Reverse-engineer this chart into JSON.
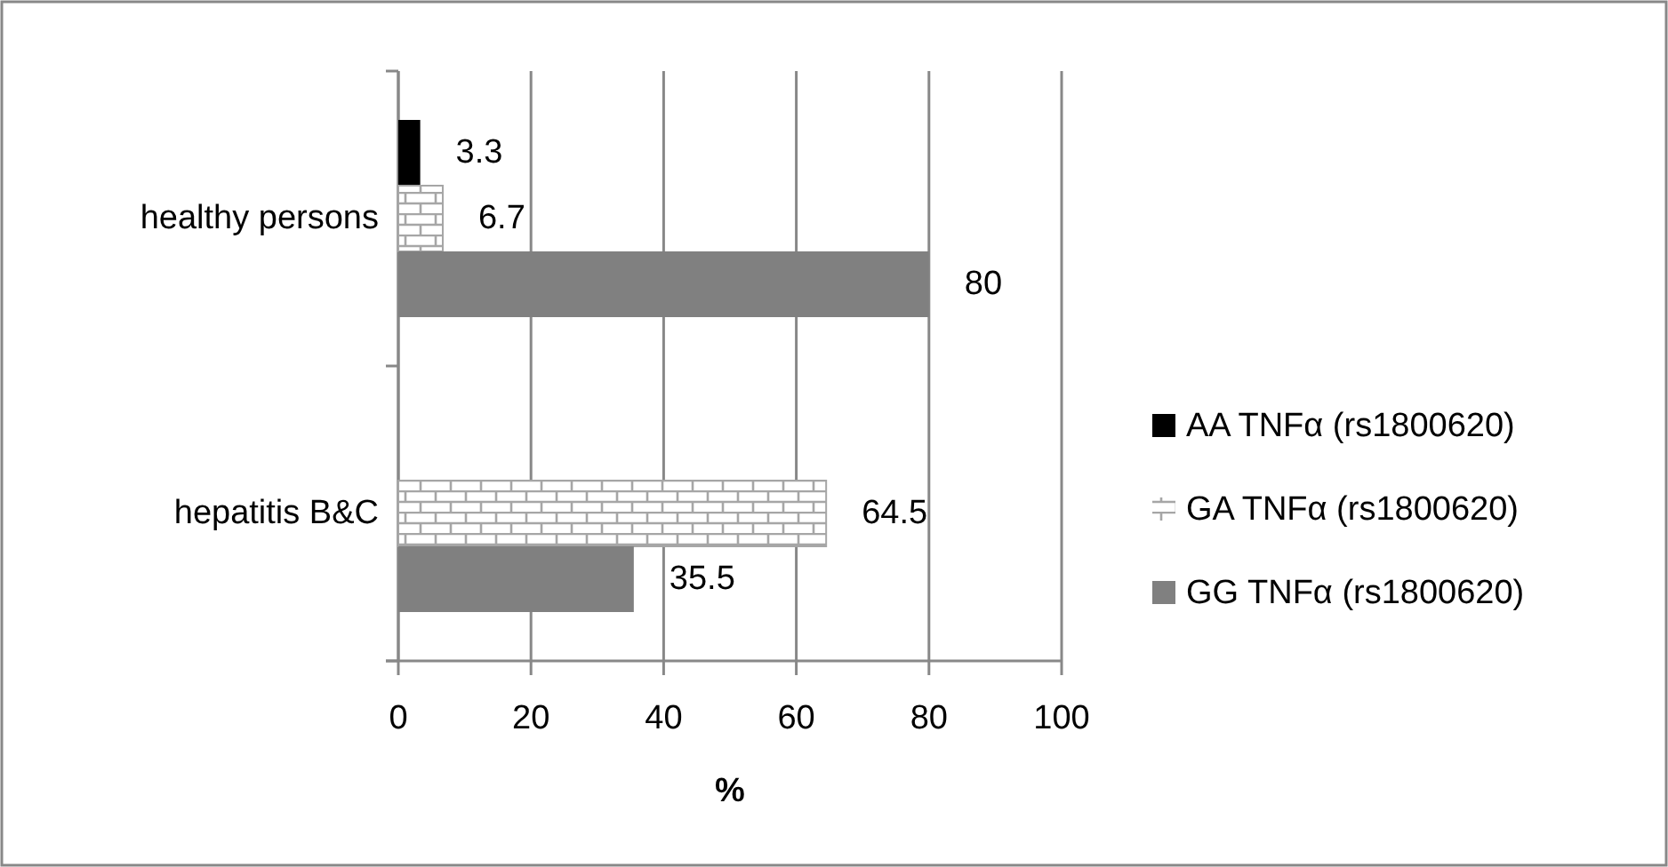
{
  "chart_data": {
    "type": "bar",
    "orientation": "horizontal",
    "categories": [
      "healthy persons",
      "hepatitis B&C"
    ],
    "series": [
      {
        "name": "AA TNFα (rs1800620)",
        "color": "#000000",
        "values": [
          3.3,
          null
        ]
      },
      {
        "name": "GA TNFα (rs1800620)",
        "color": "#a6a6a6",
        "values": [
          6.7,
          64.5
        ]
      },
      {
        "name": "GG TNFα (rs1800620)",
        "color": "#808080",
        "values": [
          80,
          35.5
        ]
      }
    ],
    "xlabel": "%",
    "xlim": [
      0,
      100
    ],
    "xticks": [
      0,
      20,
      40,
      60,
      80,
      100
    ],
    "grid": "x",
    "legend": "right",
    "data_labels": true
  }
}
